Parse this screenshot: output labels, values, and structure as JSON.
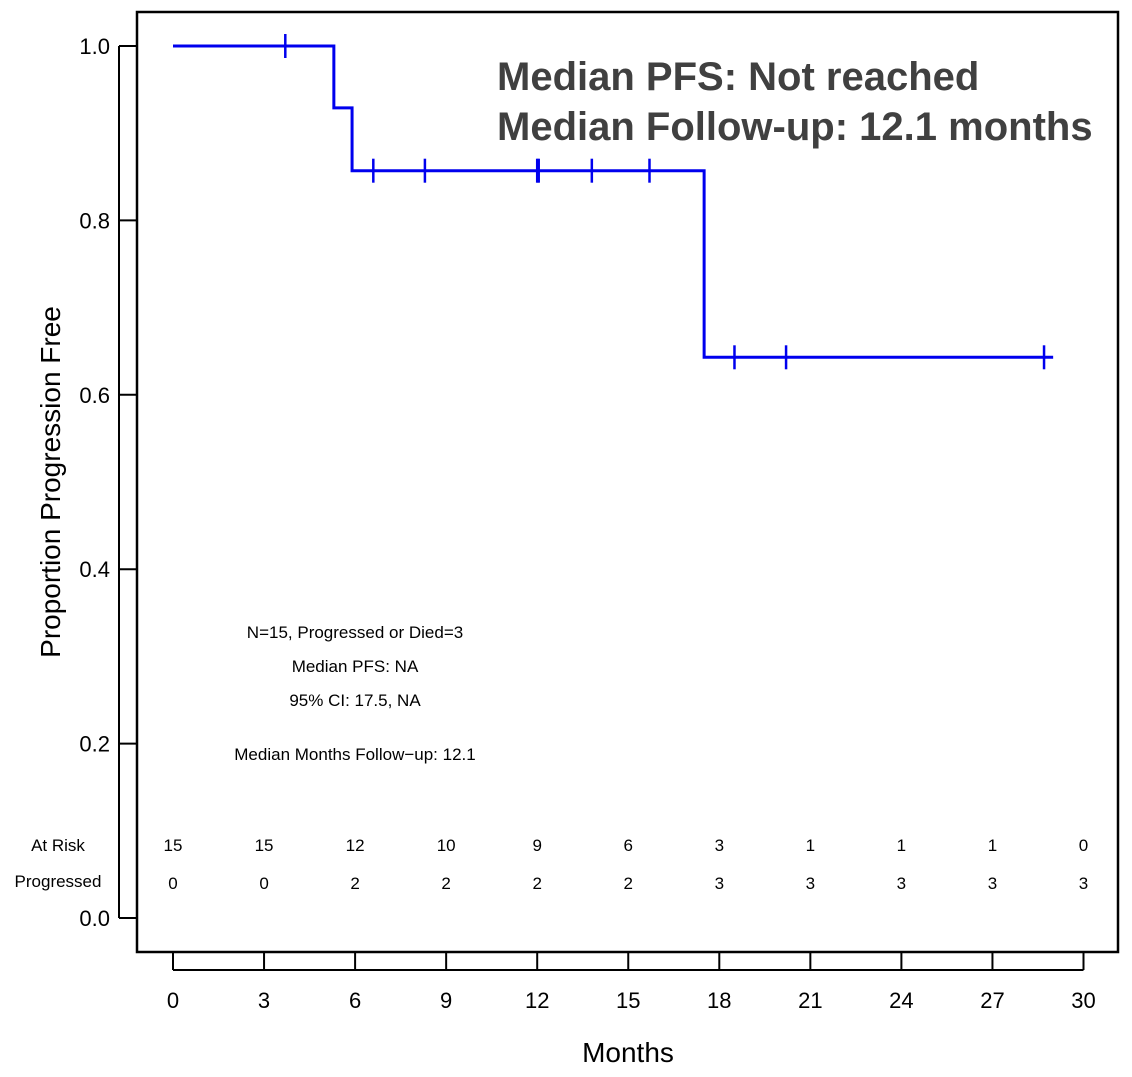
{
  "chart_data": {
    "type": "line",
    "title": "",
    "xlabel": "Months",
    "ylabel": "Proportion Progression Free",
    "xlim": [
      0,
      30
    ],
    "ylim": [
      0,
      1
    ],
    "x_ticks": [
      "0",
      "3",
      "6",
      "9",
      "12",
      "15",
      "18",
      "21",
      "24",
      "27",
      "30"
    ],
    "y_ticks": [
      "0.0",
      "0.2",
      "0.4",
      "0.6",
      "0.8",
      "1.0"
    ],
    "series": [
      {
        "color": "#0000ee",
        "steps": [
          {
            "x": 0,
            "y": 1.0
          },
          {
            "x": 5.3,
            "y": 0.929
          },
          {
            "x": 5.9,
            "y": 0.857
          },
          {
            "x": 17.5,
            "y": 0.643
          },
          {
            "x": 29.0,
            "y": 0.643
          }
        ],
        "censored": [
          {
            "x": 3.7,
            "y": 1.0
          },
          {
            "x": 6.6,
            "y": 0.857
          },
          {
            "x": 8.3,
            "y": 0.857
          },
          {
            "x": 12.0,
            "y": 0.857
          },
          {
            "x": 12.05,
            "y": 0.857
          },
          {
            "x": 13.8,
            "y": 0.857
          },
          {
            "x": 15.7,
            "y": 0.857
          },
          {
            "x": 18.5,
            "y": 0.643
          },
          {
            "x": 20.2,
            "y": 0.643
          },
          {
            "x": 28.7,
            "y": 0.643
          }
        ]
      }
    ],
    "headline": [
      "Median PFS: Not reached",
      "Median Follow-up: 12.1 months"
    ],
    "stats": [
      "N=15,  Progressed or Died=3",
      "Median PFS: NA",
      "95% CI: 17.5, NA",
      "Median Months Follow−up:  12.1"
    ],
    "risk_table": {
      "at_risk_label": "At Risk",
      "progressed_label": "Progressed",
      "at_risk": [
        "15",
        "15",
        "12",
        "10",
        "9",
        "6",
        "3",
        "1",
        "1",
        "1",
        "0"
      ],
      "progressed": [
        "0",
        "0",
        "2",
        "2",
        "2",
        "2",
        "3",
        "3",
        "3",
        "3",
        "3"
      ]
    },
    "grid": false,
    "legend": "none"
  }
}
